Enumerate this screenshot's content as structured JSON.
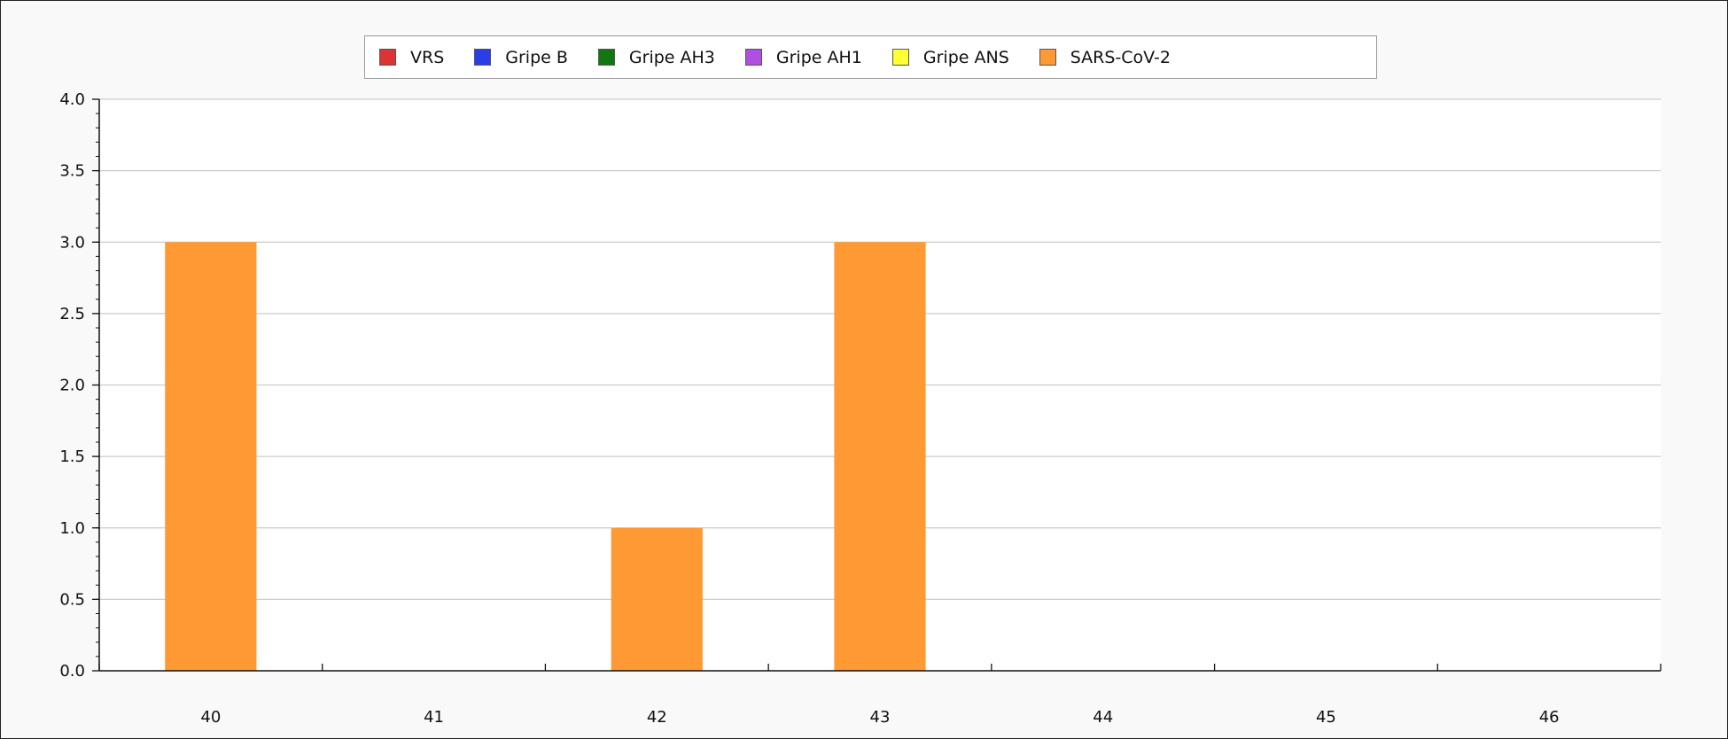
{
  "chart_data": {
    "type": "bar",
    "categories": [
      "40",
      "41",
      "42",
      "43",
      "44",
      "45",
      "46"
    ],
    "series": [
      {
        "name": "VRS",
        "color": "#dd3333",
        "values": [
          0,
          0,
          0,
          0,
          0,
          0,
          0
        ]
      },
      {
        "name": "Gripe B",
        "color": "#2a3de8",
        "values": [
          0,
          0,
          0,
          0,
          0,
          0,
          0
        ]
      },
      {
        "name": "Gripe AH3",
        "color": "#117711",
        "values": [
          0,
          0,
          0,
          0,
          0,
          0,
          0
        ]
      },
      {
        "name": "Gripe AH1",
        "color": "#b050e0",
        "values": [
          0,
          0,
          0,
          0,
          0,
          0,
          0
        ]
      },
      {
        "name": "Gripe ANS",
        "color": "#ffff33",
        "values": [
          0,
          0,
          0,
          0,
          0,
          0,
          0
        ]
      },
      {
        "name": "SARS-CoV-2",
        "color": "#ff9933",
        "values": [
          3,
          0,
          1,
          3,
          0,
          0,
          0
        ]
      }
    ],
    "title": "",
    "xlabel": "",
    "ylabel": "",
    "ylim": [
      0,
      4
    ],
    "y_ticks": [
      "0.0",
      "0.5",
      "1.0",
      "1.5",
      "2.0",
      "2.5",
      "3.0",
      "3.5",
      "4.0"
    ],
    "grid": true,
    "legend_position": "top"
  }
}
